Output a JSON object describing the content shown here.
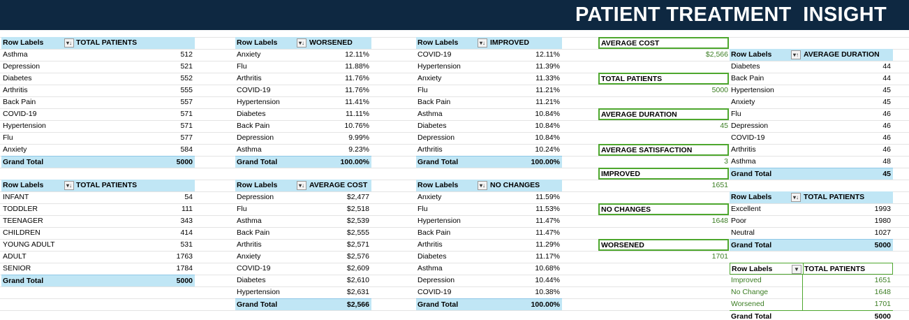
{
  "banner": {
    "title": "PATIENT TREATMENT  INSIGHT",
    "bg": "#0e2841"
  },
  "colors": {
    "header_fill": "#c0e6f5",
    "kpi_border": "#4ea72e",
    "kpi_value": "#3b7d23"
  },
  "pt_total_by_condition": {
    "row_label_header": "Row Labels",
    "value_header": "TOTAL PATIENTS",
    "filter_icon": "sort-descending-filter-icon",
    "rows": [
      {
        "label": "Asthma",
        "value": "512"
      },
      {
        "label": "Depression",
        "value": "521"
      },
      {
        "label": "Diabetes",
        "value": "552"
      },
      {
        "label": "Arthritis",
        "value": "555"
      },
      {
        "label": "Back Pain",
        "value": "557"
      },
      {
        "label": "COVID-19",
        "value": "571"
      },
      {
        "label": "Hypertension",
        "value": "571"
      },
      {
        "label": "Flu",
        "value": "577"
      },
      {
        "label": "Anxiety",
        "value": "584"
      }
    ],
    "total_label": "Grand Total",
    "total_value": "5000"
  },
  "pt_worsened": {
    "row_label_header": "Row Labels",
    "value_header": "WORSENED",
    "filter_icon": "sort-descending-filter-icon",
    "rows": [
      {
        "label": "Anxiety",
        "value": "12.11%"
      },
      {
        "label": "Flu",
        "value": "11.88%"
      },
      {
        "label": "Arthritis",
        "value": "11.76%"
      },
      {
        "label": "COVID-19",
        "value": "11.76%"
      },
      {
        "label": "Hypertension",
        "value": "11.41%"
      },
      {
        "label": "Diabetes",
        "value": "11.11%"
      },
      {
        "label": "Back Pain",
        "value": "10.76%"
      },
      {
        "label": "Depression",
        "value": "9.99%"
      },
      {
        "label": "Asthma",
        "value": "9.23%"
      }
    ],
    "total_label": "Grand Total",
    "total_value": "100.00%"
  },
  "pt_improved": {
    "row_label_header": "Row Labels",
    "value_header": "IMPROVED",
    "filter_icon": "sort-descending-filter-icon",
    "rows": [
      {
        "label": "COVID-19",
        "value": "12.11%"
      },
      {
        "label": "Hypertension",
        "value": "11.39%"
      },
      {
        "label": "Anxiety",
        "value": "11.33%"
      },
      {
        "label": "Flu",
        "value": "11.21%"
      },
      {
        "label": "Back Pain",
        "value": "11.21%"
      },
      {
        "label": "Asthma",
        "value": "10.84%"
      },
      {
        "label": "Diabetes",
        "value": "10.84%"
      },
      {
        "label": "Depression",
        "value": "10.84%"
      },
      {
        "label": "Arthritis",
        "value": "10.24%"
      }
    ],
    "total_label": "Grand Total",
    "total_value": "100.00%"
  },
  "pt_age_group": {
    "row_label_header": "Row Labels",
    "value_header": "TOTAL PATIENTS",
    "filter_icon": "sort-descending-filter-icon",
    "rows": [
      {
        "label": "INFANT",
        "value": "54"
      },
      {
        "label": "TODDLER",
        "value": "111"
      },
      {
        "label": "TEENAGER",
        "value": "343"
      },
      {
        "label": "CHILDREN",
        "value": "414"
      },
      {
        "label": "YOUNG ADULT",
        "value": "531"
      },
      {
        "label": "ADULT",
        "value": "1763"
      },
      {
        "label": "SENIOR",
        "value": "1784"
      }
    ],
    "total_label": "Grand Total",
    "total_value": "5000"
  },
  "pt_average_cost": {
    "row_label_header": "Row Labels",
    "value_header": "AVERAGE COST",
    "filter_icon": "sort-descending-filter-icon",
    "rows": [
      {
        "label": "Depression",
        "value": "$2,477"
      },
      {
        "label": "Flu",
        "value": "$2,518"
      },
      {
        "label": "Asthma",
        "value": "$2,539"
      },
      {
        "label": "Back Pain",
        "value": "$2,555"
      },
      {
        "label": "Arthritis",
        "value": "$2,571"
      },
      {
        "label": "Anxiety",
        "value": "$2,576"
      },
      {
        "label": "COVID-19",
        "value": "$2,609"
      },
      {
        "label": "Diabetes",
        "value": "$2,610"
      },
      {
        "label": "Hypertension",
        "value": "$2,631"
      }
    ],
    "total_label": "Grand Total",
    "total_value": "$2,566"
  },
  "pt_no_changes": {
    "row_label_header": "Row Labels",
    "value_header": "NO CHANGES",
    "filter_icon": "sort-descending-filter-icon",
    "rows": [
      {
        "label": "Anxiety",
        "value": "11.59%"
      },
      {
        "label": "Flu",
        "value": "11.53%"
      },
      {
        "label": "Hypertension",
        "value": "11.47%"
      },
      {
        "label": "Back Pain",
        "value": "11.47%"
      },
      {
        "label": "Arthritis",
        "value": "11.29%"
      },
      {
        "label": "Diabetes",
        "value": "11.17%"
      },
      {
        "label": "Asthma",
        "value": "10.68%"
      },
      {
        "label": "Depression",
        "value": "10.44%"
      },
      {
        "label": "COVID-19",
        "value": "10.38%"
      }
    ],
    "total_label": "Grand Total",
    "total_value": "100.00%"
  },
  "kpis": [
    {
      "label": "AVERAGE COST",
      "value": "$2,566"
    },
    {
      "label": "TOTAL PATIENTS",
      "value": "5000"
    },
    {
      "label": "AVERAGE DURATION",
      "value": "45"
    },
    {
      "label": "AVERAGE SATISFACTION",
      "value": "3"
    },
    {
      "label": "IMPROVED",
      "value": "1651"
    },
    {
      "label": "NO CHANGES",
      "value": "1648"
    },
    {
      "label": "WORSENED",
      "value": "1701"
    }
  ],
  "pt_average_duration": {
    "row_label_header": "Row Labels",
    "value_header": "AVERAGE DURATION",
    "filter_icon": "sort-ascending-filter-icon",
    "rows": [
      {
        "label": "Diabetes",
        "value": "44"
      },
      {
        "label": "Back Pain",
        "value": "44"
      },
      {
        "label": "Hypertension",
        "value": "45"
      },
      {
        "label": "Anxiety",
        "value": "45"
      },
      {
        "label": "Flu",
        "value": "46"
      },
      {
        "label": "Depression",
        "value": "46"
      },
      {
        "label": "COVID-19",
        "value": "46"
      },
      {
        "label": "Arthritis",
        "value": "46"
      },
      {
        "label": "Asthma",
        "value": "48"
      }
    ],
    "total_label": "Grand Total",
    "total_value": "45"
  },
  "pt_satisfaction": {
    "row_label_header": "Row Labels",
    "value_header": "TOTAL PATIENTS",
    "filter_icon": "sort-descending-filter-icon",
    "rows": [
      {
        "label": "Excellent",
        "value": "1993"
      },
      {
        "label": "Poor",
        "value": "1980"
      },
      {
        "label": "Neutral",
        "value": "1027"
      }
    ],
    "total_label": "Grand Total",
    "total_value": "5000"
  },
  "pt_outcome": {
    "row_label_header": "Row Labels",
    "value_header": "TOTAL PATIENTS",
    "filter_icon": "dropdown-filter-icon",
    "rows": [
      {
        "label": "Improved",
        "value": "1651"
      },
      {
        "label": "No Change",
        "value": "1648"
      },
      {
        "label": "Worsened",
        "value": "1701"
      }
    ],
    "total_label": "Grand Total",
    "total_value": "5000"
  }
}
